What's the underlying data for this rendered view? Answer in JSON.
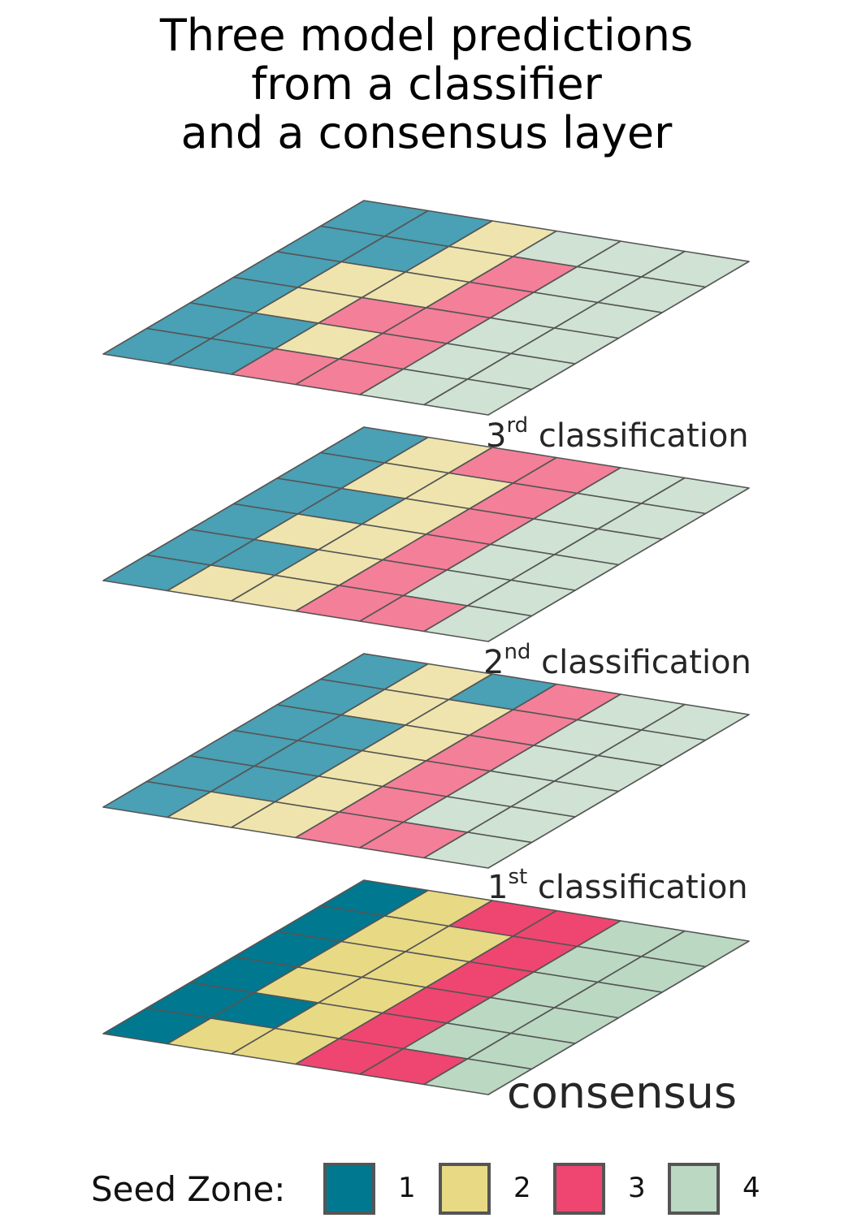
{
  "title": [
    "Three model predictions",
    "from a classifier",
    "and a consensus layer"
  ],
  "colors": {
    "1": "#4aa0b4",
    "2": "#efe4ad",
    "3": "#f47f98",
    "4": "#cfe2d3"
  },
  "consensus_colors": {
    "1": "#00788f",
    "2": "#e8d985",
    "3": "#ee4670",
    "4": "#bbd8c2"
  },
  "layers": [
    {
      "id": "third",
      "label_num": "3",
      "label_sup": "rd",
      "label_text": "classification",
      "grid": [
        [
          1,
          1,
          2,
          4,
          4,
          4
        ],
        [
          1,
          1,
          2,
          3,
          4,
          4
        ],
        [
          1,
          2,
          2,
          3,
          4,
          4
        ],
        [
          1,
          2,
          3,
          3,
          4,
          4
        ],
        [
          1,
          1,
          2,
          3,
          4,
          4
        ],
        [
          1,
          1,
          3,
          3,
          4,
          4
        ]
      ]
    },
    {
      "id": "second",
      "label_num": "2",
      "label_sup": "nd",
      "label_text": "classification",
      "grid": [
        [
          1,
          2,
          3,
          3,
          4,
          4
        ],
        [
          1,
          2,
          2,
          3,
          4,
          4
        ],
        [
          1,
          1,
          2,
          3,
          4,
          4
        ],
        [
          1,
          2,
          2,
          3,
          4,
          4
        ],
        [
          1,
          1,
          2,
          3,
          4,
          4
        ],
        [
          1,
          2,
          2,
          3,
          3,
          4
        ]
      ]
    },
    {
      "id": "first",
      "label_num": "1",
      "label_sup": "st",
      "label_text": "classification",
      "grid": [
        [
          1,
          2,
          1,
          3,
          4,
          4
        ],
        [
          1,
          2,
          2,
          3,
          4,
          4
        ],
        [
          1,
          1,
          2,
          3,
          4,
          4
        ],
        [
          1,
          1,
          2,
          3,
          4,
          4
        ],
        [
          1,
          1,
          2,
          3,
          4,
          4
        ],
        [
          1,
          2,
          2,
          3,
          3,
          4
        ]
      ]
    },
    {
      "id": "consensus",
      "label_text": "consensus",
      "consensus": true,
      "grid": [
        [
          1,
          2,
          3,
          3,
          4,
          4
        ],
        [
          1,
          2,
          2,
          3,
          4,
          4
        ],
        [
          1,
          2,
          2,
          3,
          4,
          4
        ],
        [
          1,
          2,
          2,
          3,
          4,
          4
        ],
        [
          1,
          1,
          2,
          3,
          4,
          4
        ],
        [
          1,
          2,
          2,
          3,
          3,
          4
        ]
      ]
    }
  ],
  "legend": {
    "label": "Seed Zone:",
    "items": [
      {
        "key": "1",
        "text": "1",
        "color": "#00788f"
      },
      {
        "key": "2",
        "text": "2",
        "color": "#e8d985"
      },
      {
        "key": "3",
        "text": "3",
        "color": "#ee4670"
      },
      {
        "key": "4",
        "text": "4",
        "color": "#bbd8c2"
      }
    ]
  }
}
